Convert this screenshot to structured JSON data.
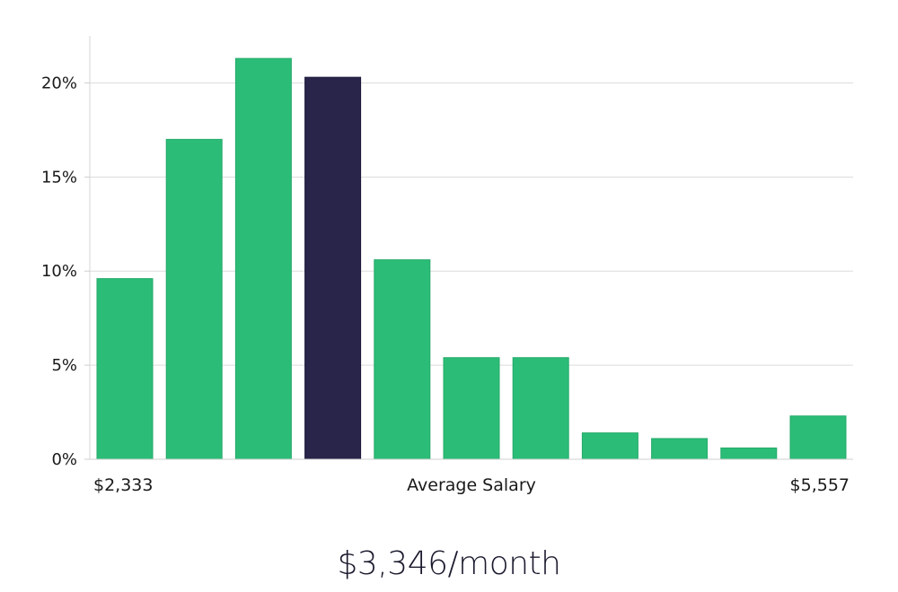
{
  "chart_data": {
    "type": "bar",
    "values": [
      9.6,
      17.0,
      21.3,
      20.3,
      10.6,
      5.4,
      5.4,
      1.4,
      1.1,
      0.6,
      2.3
    ],
    "highlight_index": 3,
    "bar_color": "#2bbd77",
    "highlight_color": "#28244a",
    "ylim": [
      0,
      22.5
    ],
    "y_ticks": [
      0,
      5,
      10,
      15,
      20
    ],
    "y_tick_labels": [
      "0%",
      "5%",
      "10%",
      "15%",
      "20%"
    ],
    "grid": true,
    "x_start_label": "$2,333",
    "x_end_label": "$5,557",
    "xlabel": "Average Salary"
  },
  "caption": "$3,346/month"
}
